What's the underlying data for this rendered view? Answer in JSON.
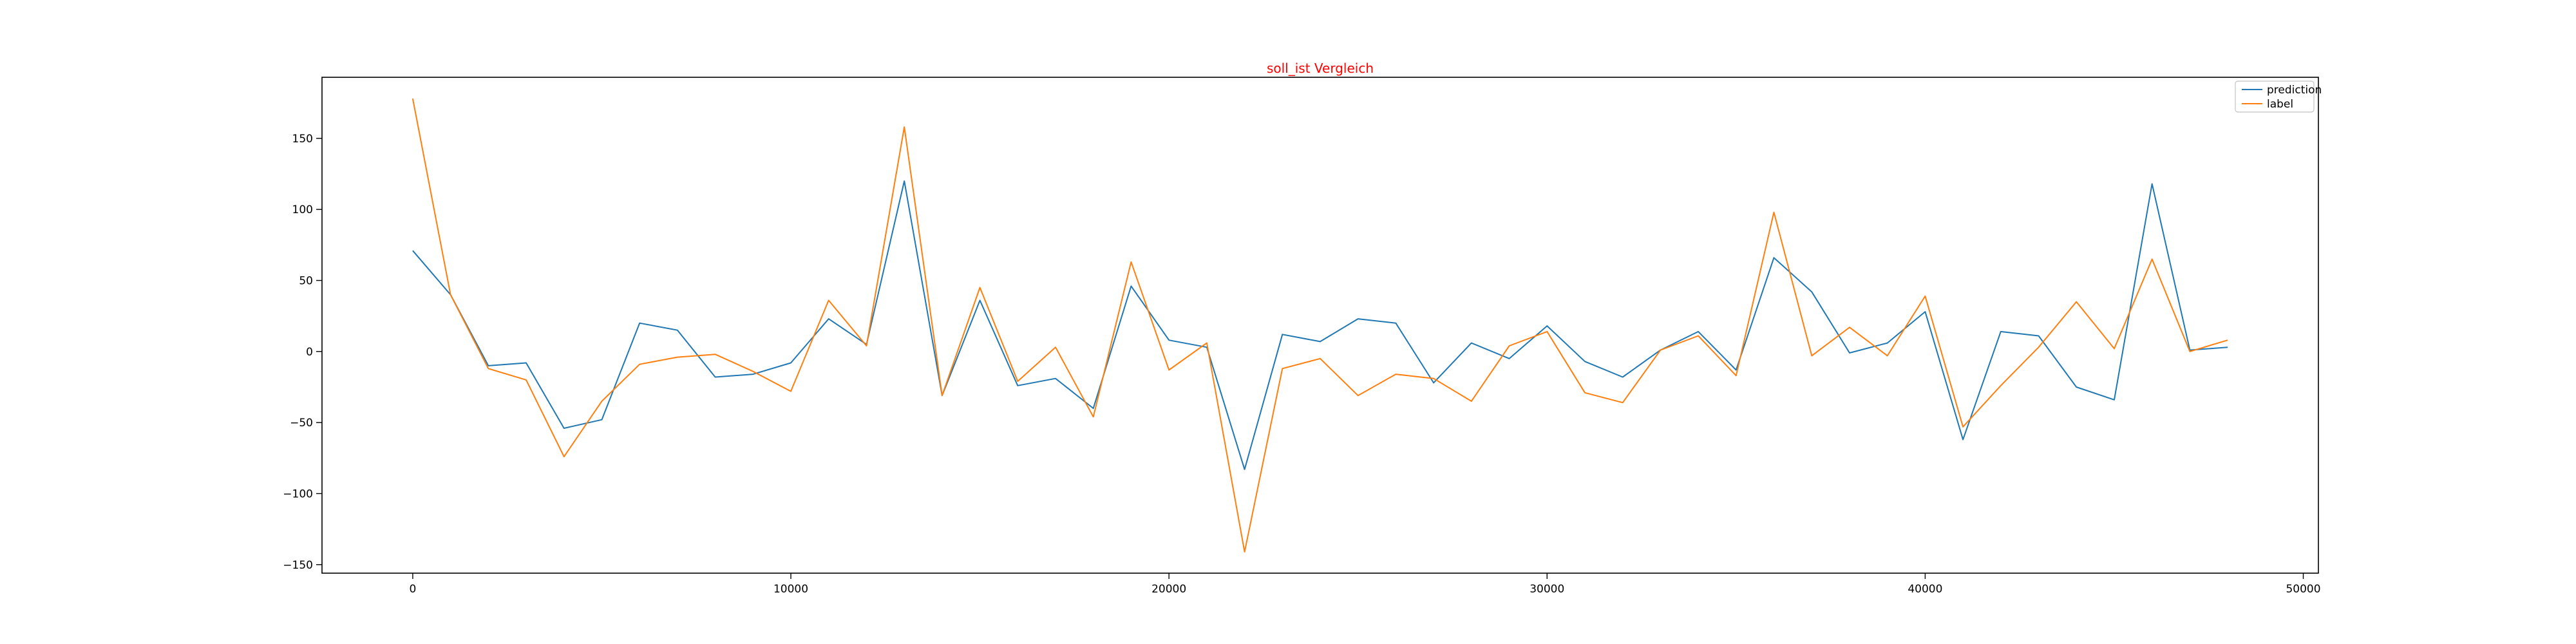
{
  "chart_data": {
    "type": "line",
    "title": "soll_ist Vergleich",
    "title_color": "#ff0000",
    "xlabel": "",
    "ylabel": "",
    "xlim": [
      -2400,
      50400
    ],
    "ylim": [
      -156,
      193
    ],
    "xticks": [
      0,
      10000,
      20000,
      30000,
      40000,
      50000
    ],
    "yticks": [
      -150,
      -100,
      -50,
      0,
      50,
      100,
      150
    ],
    "grid": false,
    "legend_position": "top-right",
    "x": [
      0,
      1000,
      2000,
      3000,
      4000,
      5000,
      6000,
      7000,
      8000,
      9000,
      10000,
      11000,
      12000,
      13000,
      14000,
      15000,
      16000,
      17000,
      18000,
      19000,
      20000,
      21000,
      22000,
      23000,
      24000,
      25000,
      26000,
      27000,
      28000,
      29000,
      30000,
      31000,
      32000,
      33000,
      34000,
      35000,
      36000,
      37000,
      38000,
      39000,
      40000,
      41000,
      42000,
      43000,
      44000,
      45000,
      46000,
      47000,
      48000
    ],
    "series": [
      {
        "name": "prediction",
        "color": "#1f77b4",
        "values": [
          71,
          40,
          -10,
          -8,
          -54,
          -48,
          20,
          15,
          -18,
          -16,
          -8,
          23,
          5,
          120,
          -31,
          36,
          -24,
          -19,
          -40,
          46,
          8,
          3,
          -83,
          12,
          7,
          23,
          20,
          -22,
          6,
          -5,
          18,
          -7,
          -18,
          1,
          14,
          -13,
          66,
          42,
          -1,
          6,
          28,
          -62,
          14,
          11,
          -25,
          -34,
          118,
          1,
          3
        ]
      },
      {
        "name": "label",
        "color": "#ff7f0e",
        "values": [
          178,
          40,
          -12,
          -20,
          -74,
          -35,
          -9,
          -4,
          -2,
          -14,
          -28,
          36,
          4,
          158,
          -31,
          45,
          -21,
          3,
          -46,
          63,
          -13,
          6,
          -141,
          -12,
          -5,
          -31,
          -16,
          -19,
          -35,
          4,
          14,
          -29,
          -36,
          1,
          11,
          -17,
          98,
          -3,
          17,
          -3,
          39,
          -53,
          -24,
          3,
          35,
          2,
          65,
          0,
          8
        ]
      }
    ]
  }
}
